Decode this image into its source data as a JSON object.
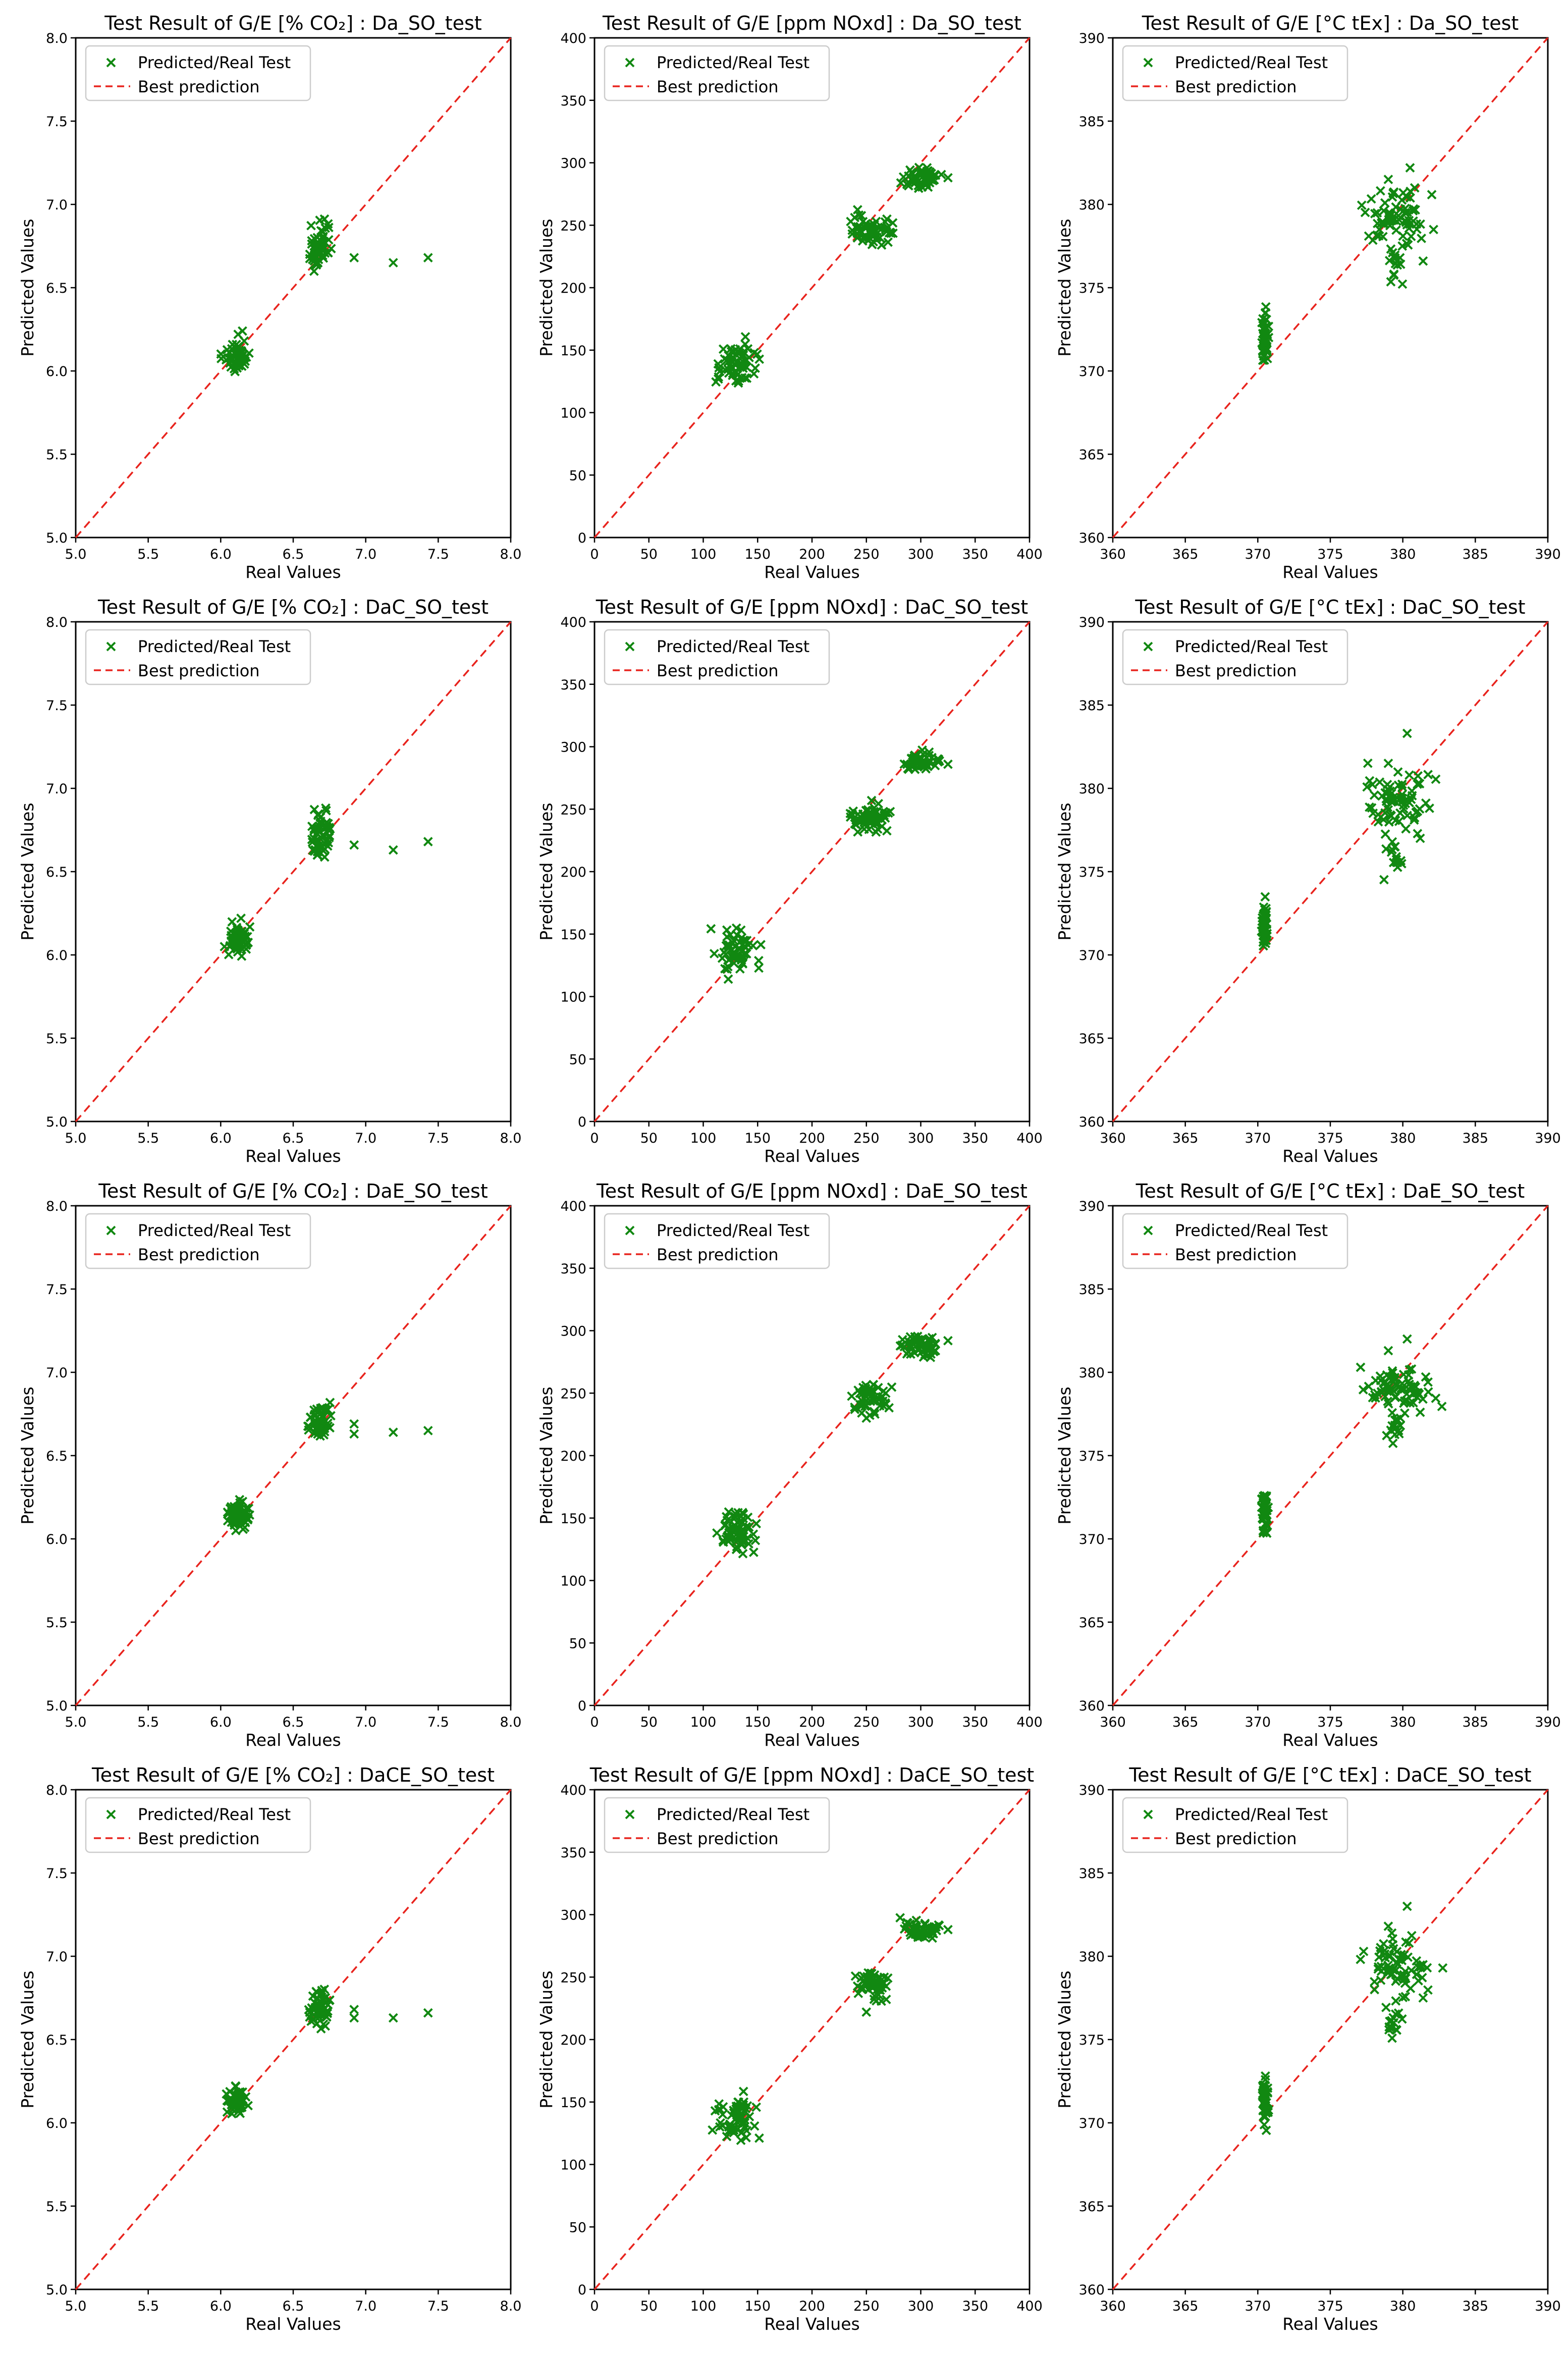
{
  "legend": {
    "series_label": "Predicted/Real Test",
    "line_label": "Best prediction"
  },
  "colors": {
    "points": "#118811",
    "diagonal": "#e8231d",
    "axis": "#000000",
    "legend_border": "#cccccc"
  },
  "chart_data": [
    {
      "type": "scatter",
      "title": "Test Result of G/E [% CO₂] : Da_SO_test",
      "xlabel": "Real Values",
      "ylabel": "Predicted Values",
      "xlim": [
        5.0,
        8.0
      ],
      "ylim": [
        5.0,
        8.0
      ],
      "ticks": [
        5.0,
        5.5,
        6.0,
        6.5,
        7.0,
        7.5,
        8.0
      ],
      "tick_labels": [
        "5.0",
        "5.5",
        "6.0",
        "6.5",
        "7.0",
        "7.5",
        "8.0"
      ],
      "legend_position": "top-left",
      "clusters": [
        {
          "cx": 6.11,
          "cy": 6.09,
          "sx": 0.04,
          "sy": 0.04,
          "n": 55
        },
        {
          "cx": 6.68,
          "cy": 6.74,
          "sx": 0.04,
          "sy": 0.07,
          "n": 55
        }
      ],
      "outliers": [
        [
          6.92,
          6.68
        ],
        [
          7.19,
          6.65
        ],
        [
          7.43,
          6.68
        ],
        [
          6.12,
          6.22
        ],
        [
          6.15,
          6.24
        ]
      ]
    },
    {
      "type": "scatter",
      "title": "Test Result of G/E [ppm NOxd] : Da_SO_test",
      "xlabel": "Real Values",
      "ylabel": "Predicted Values",
      "xlim": [
        0,
        400
      ],
      "ylim": [
        0,
        400
      ],
      "ticks": [
        0,
        50,
        100,
        150,
        200,
        250,
        300,
        350,
        400
      ],
      "tick_labels": [
        "0",
        "50",
        "100",
        "150",
        "200",
        "250",
        "300",
        "350",
        "400"
      ],
      "legend_position": "top-left",
      "clusters": [
        {
          "cx": 130,
          "cy": 138,
          "sx": 10,
          "sy": 9,
          "n": 60
        },
        {
          "cx": 255,
          "cy": 246,
          "sx": 10,
          "sy": 6,
          "n": 55
        },
        {
          "cx": 300,
          "cy": 288,
          "sx": 8,
          "sy": 4,
          "n": 50
        }
      ],
      "outliers": [
        [
          325,
          288
        ],
        [
          237,
          243
        ]
      ]
    },
    {
      "type": "scatter",
      "title": "Test Result of G/E [°C tEx] : Da_SO_test",
      "xlabel": "Real Values",
      "ylabel": "Predicted Values",
      "xlim": [
        360,
        390
      ],
      "ylim": [
        360,
        390
      ],
      "ticks": [
        360,
        365,
        370,
        375,
        380,
        385,
        390
      ],
      "tick_labels": [
        "360",
        "365",
        "370",
        "375",
        "380",
        "385",
        "390"
      ],
      "legend_position": "top-left",
      "clusters": [
        {
          "cx": 370.5,
          "cy": 372.0,
          "sx": 0.1,
          "sy": 0.7,
          "n": 45
        },
        {
          "cx": 379.6,
          "cy": 379.2,
          "sx": 1.1,
          "sy": 0.9,
          "n": 70
        },
        {
          "cx": 379.4,
          "cy": 376.3,
          "sx": 0.3,
          "sy": 0.6,
          "n": 15
        }
      ],
      "outliers": [
        [
          380.5,
          382.2
        ],
        [
          379.0,
          381.5
        ],
        [
          381.4,
          376.6
        ]
      ]
    },
    {
      "type": "scatter",
      "title": "Test Result of G/E [% CO₂] : DaC_SO_test",
      "xlabel": "Real Values",
      "ylabel": "Predicted Values",
      "xlim": [
        5.0,
        8.0
      ],
      "ylim": [
        5.0,
        8.0
      ],
      "ticks": [
        5.0,
        5.5,
        6.0,
        6.5,
        7.0,
        7.5,
        8.0
      ],
      "tick_labels": [
        "5.0",
        "5.5",
        "6.0",
        "6.5",
        "7.0",
        "7.5",
        "8.0"
      ],
      "legend_position": "top-left",
      "clusters": [
        {
          "cx": 6.11,
          "cy": 6.09,
          "sx": 0.04,
          "sy": 0.04,
          "n": 55
        },
        {
          "cx": 6.68,
          "cy": 6.74,
          "sx": 0.04,
          "sy": 0.07,
          "n": 55
        }
      ],
      "outliers": [
        [
          6.92,
          6.66
        ],
        [
          7.19,
          6.63
        ],
        [
          7.43,
          6.68
        ],
        [
          6.14,
          6.22
        ]
      ]
    },
    {
      "type": "scatter",
      "title": "Test Result of G/E [ppm NOxd] : DaC_SO_test",
      "xlabel": "Real Values",
      "ylabel": "Predicted Values",
      "xlim": [
        0,
        400
      ],
      "ylim": [
        0,
        400
      ],
      "ticks": [
        0,
        50,
        100,
        150,
        200,
        250,
        300,
        350,
        400
      ],
      "tick_labels": [
        "0",
        "50",
        "100",
        "150",
        "200",
        "250",
        "300",
        "350",
        "400"
      ],
      "legend_position": "top-left",
      "clusters": [
        {
          "cx": 130,
          "cy": 138,
          "sx": 10,
          "sy": 9,
          "n": 60
        },
        {
          "cx": 255,
          "cy": 245,
          "sx": 10,
          "sy": 6,
          "n": 55
        },
        {
          "cx": 300,
          "cy": 288,
          "sx": 8,
          "sy": 4,
          "n": 50
        }
      ],
      "outliers": [
        [
          325,
          286
        ],
        [
          237,
          246
        ]
      ]
    },
    {
      "type": "scatter",
      "title": "Test Result of G/E [°C tEx] : DaC_SO_test",
      "xlabel": "Real Values",
      "ylabel": "Predicted Values",
      "xlim": [
        360,
        390
      ],
      "ylim": [
        360,
        390
      ],
      "ticks": [
        360,
        365,
        370,
        375,
        380,
        385,
        390
      ],
      "tick_labels": [
        "360",
        "365",
        "370",
        "375",
        "380",
        "385",
        "390"
      ],
      "legend_position": "top-left",
      "clusters": [
        {
          "cx": 370.5,
          "cy": 371.8,
          "sx": 0.1,
          "sy": 0.7,
          "n": 45
        },
        {
          "cx": 379.8,
          "cy": 379.2,
          "sx": 1.1,
          "sy": 1.0,
          "n": 70
        },
        {
          "cx": 379.3,
          "cy": 376.0,
          "sx": 0.3,
          "sy": 0.6,
          "n": 15
        }
      ],
      "outliers": [
        [
          380.3,
          383.3
        ],
        [
          379.0,
          381.5
        ],
        [
          381.2,
          377.0
        ]
      ]
    },
    {
      "type": "scatter",
      "title": "Test Result of G/E [% CO₂] : DaE_SO_test",
      "xlabel": "Real Values",
      "ylabel": "Predicted Values",
      "xlim": [
        5.0,
        8.0
      ],
      "ylim": [
        5.0,
        8.0
      ],
      "ticks": [
        5.0,
        5.5,
        6.0,
        6.5,
        7.0,
        7.5,
        8.0
      ],
      "tick_labels": [
        "5.0",
        "5.5",
        "6.0",
        "6.5",
        "7.0",
        "7.5",
        "8.0"
      ],
      "legend_position": "top-left",
      "clusters": [
        {
          "cx": 6.12,
          "cy": 6.14,
          "sx": 0.04,
          "sy": 0.04,
          "n": 55
        },
        {
          "cx": 6.68,
          "cy": 6.7,
          "sx": 0.04,
          "sy": 0.06,
          "n": 55
        }
      ],
      "outliers": [
        [
          6.92,
          6.69
        ],
        [
          6.92,
          6.63
        ],
        [
          7.19,
          6.64
        ],
        [
          7.43,
          6.65
        ]
      ]
    },
    {
      "type": "scatter",
      "title": "Test Result of G/E [ppm NOxd] : DaE_SO_test",
      "xlabel": "Real Values",
      "ylabel": "Predicted Values",
      "xlim": [
        0,
        400
      ],
      "ylim": [
        0,
        400
      ],
      "ticks": [
        0,
        50,
        100,
        150,
        200,
        250,
        300,
        350,
        400
      ],
      "tick_labels": [
        "0",
        "50",
        "100",
        "150",
        "200",
        "250",
        "300",
        "350",
        "400"
      ],
      "legend_position": "top-left",
      "clusters": [
        {
          "cx": 130,
          "cy": 140,
          "sx": 10,
          "sy": 9,
          "n": 60
        },
        {
          "cx": 255,
          "cy": 245,
          "sx": 8,
          "sy": 6,
          "n": 55
        },
        {
          "cx": 300,
          "cy": 288,
          "sx": 8,
          "sy": 4,
          "n": 50
        }
      ],
      "outliers": [
        [
          325,
          292
        ],
        [
          250,
          230
        ]
      ]
    },
    {
      "type": "scatter",
      "title": "Test Result of G/E [°C tEx] : DaE_SO_test",
      "xlabel": "Real Values",
      "ylabel": "Predicted Values",
      "xlim": [
        360,
        390
      ],
      "ylim": [
        360,
        390
      ],
      "ticks": [
        360,
        365,
        370,
        375,
        380,
        385,
        390
      ],
      "tick_labels": [
        "360",
        "365",
        "370",
        "375",
        "380",
        "385",
        "390"
      ],
      "legend_position": "top-left",
      "clusters": [
        {
          "cx": 370.5,
          "cy": 371.8,
          "sx": 0.1,
          "sy": 0.7,
          "n": 45
        },
        {
          "cx": 379.6,
          "cy": 379.1,
          "sx": 1.1,
          "sy": 0.6,
          "n": 70
        },
        {
          "cx": 379.3,
          "cy": 376.8,
          "sx": 0.3,
          "sy": 0.5,
          "n": 15
        }
      ],
      "outliers": [
        [
          380.3,
          382.0
        ],
        [
          379.0,
          381.3
        ],
        [
          381.2,
          377.6
        ]
      ]
    },
    {
      "type": "scatter",
      "title": "Test Result of G/E [% CO₂] : DaCE_SO_test",
      "xlabel": "Real Values",
      "ylabel": "Predicted Values",
      "xlim": [
        5.0,
        8.0
      ],
      "ylim": [
        5.0,
        8.0
      ],
      "ticks": [
        5.0,
        5.5,
        6.0,
        6.5,
        7.0,
        7.5,
        8.0
      ],
      "tick_labels": [
        "5.0",
        "5.5",
        "6.0",
        "6.5",
        "7.0",
        "7.5",
        "8.0"
      ],
      "legend_position": "top-left",
      "clusters": [
        {
          "cx": 6.12,
          "cy": 6.14,
          "sx": 0.04,
          "sy": 0.04,
          "n": 55
        },
        {
          "cx": 6.68,
          "cy": 6.7,
          "sx": 0.04,
          "sy": 0.06,
          "n": 55
        }
      ],
      "outliers": [
        [
          6.92,
          6.68
        ],
        [
          6.92,
          6.63
        ],
        [
          7.19,
          6.63
        ],
        [
          7.43,
          6.66
        ]
      ]
    },
    {
      "type": "scatter",
      "title": "Test Result of G/E [ppm NOxd] : DaCE_SO_test",
      "xlabel": "Real Values",
      "ylabel": "Predicted Values",
      "xlim": [
        0,
        400
      ],
      "ylim": [
        0,
        400
      ],
      "ticks": [
        0,
        50,
        100,
        150,
        200,
        250,
        300,
        350,
        400
      ],
      "tick_labels": [
        "0",
        "50",
        "100",
        "150",
        "200",
        "250",
        "300",
        "350",
        "400"
      ],
      "legend_position": "top-left",
      "clusters": [
        {
          "cx": 130,
          "cy": 138,
          "sx": 10,
          "sy": 9,
          "n": 60
        },
        {
          "cx": 255,
          "cy": 245,
          "sx": 8,
          "sy": 6,
          "n": 55
        },
        {
          "cx": 300,
          "cy": 288,
          "sx": 8,
          "sy": 4,
          "n": 50
        }
      ],
      "outliers": [
        [
          325,
          288
        ],
        [
          250,
          222
        ]
      ]
    },
    {
      "type": "scatter",
      "title": "Test Result of G/E [°C tEx] : DaCE_SO_test",
      "xlabel": "Real Values",
      "ylabel": "Predicted Values",
      "xlim": [
        360,
        390
      ],
      "ylim": [
        360,
        390
      ],
      "ticks": [
        360,
        365,
        370,
        375,
        380,
        385,
        390
      ],
      "tick_labels": [
        "360",
        "365",
        "370",
        "375",
        "380",
        "385",
        "390"
      ],
      "legend_position": "top-left",
      "clusters": [
        {
          "cx": 370.5,
          "cy": 371.3,
          "sx": 0.1,
          "sy": 0.7,
          "n": 45
        },
        {
          "cx": 379.8,
          "cy": 379.3,
          "sx": 1.1,
          "sy": 0.9,
          "n": 70
        },
        {
          "cx": 379.3,
          "cy": 376.2,
          "sx": 0.3,
          "sy": 0.5,
          "n": 15
        }
      ],
      "outliers": [
        [
          380.3,
          383.0
        ],
        [
          379.0,
          381.8
        ],
        [
          381.4,
          377.5
        ]
      ]
    }
  ]
}
